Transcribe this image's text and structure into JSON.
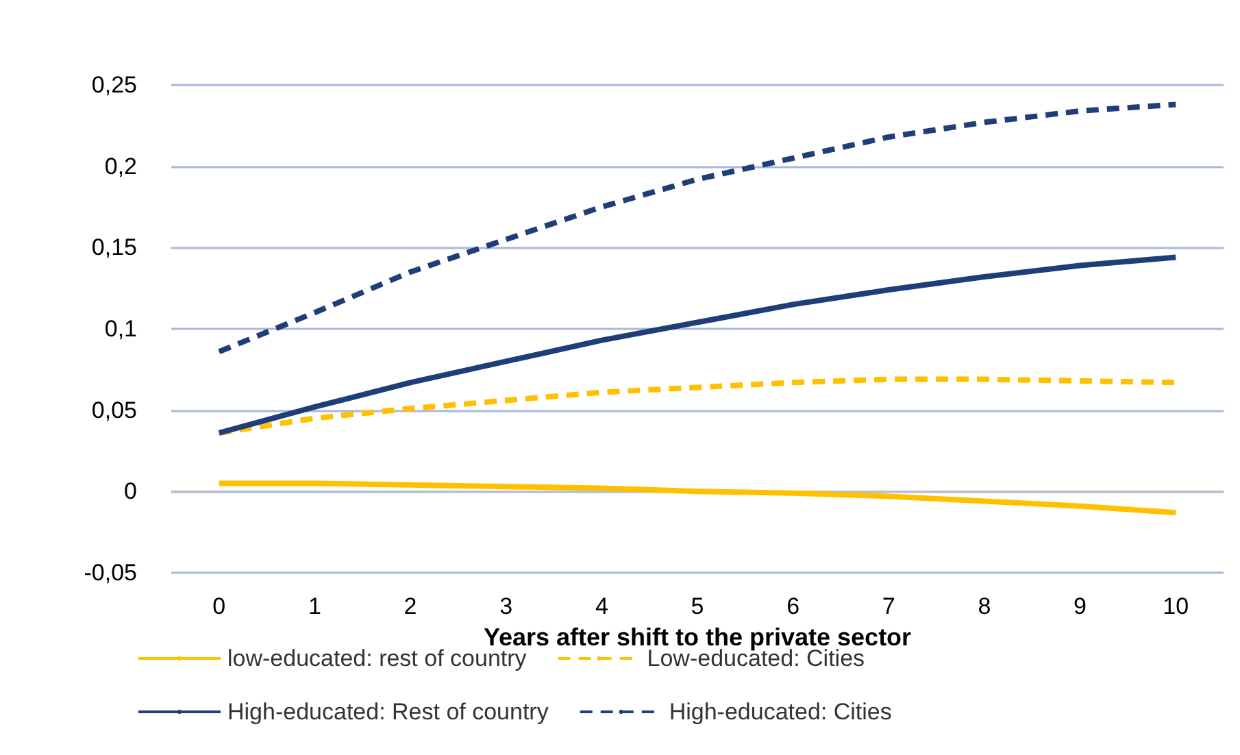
{
  "chart_data": {
    "type": "line",
    "xlabel": "Years after shift to the private sector",
    "categories": [
      "0",
      "1",
      "2",
      "3",
      "4",
      "5",
      "6",
      "7",
      "8",
      "9",
      "10"
    ],
    "series": [
      {
        "name": "low-educated: rest of country",
        "color": "#ffc000",
        "line_style": "solid",
        "values": [
          0.005,
          0.005,
          0.004,
          0.003,
          0.002,
          0,
          -0.001,
          -0.003,
          -0.006,
          -0.009,
          -0.013
        ]
      },
      {
        "name": "Low-educated: Cities",
        "color": "#ffc000",
        "line_style": "dashed",
        "values": [
          0.036,
          0.045,
          0.051,
          0.056,
          0.061,
          0.064,
          0.067,
          0.069,
          0.069,
          0.068,
          0.067
        ]
      },
      {
        "name": "High-educated: Rest of country",
        "color": "#1f3e78",
        "line_style": "solid",
        "values": [
          0.036,
          0.052,
          0.067,
          0.08,
          0.093,
          0.104,
          0.115,
          0.124,
          0.132,
          0.139,
          0.144
        ]
      },
      {
        "name": "High-educated: Cities",
        "color": "#1f3e78",
        "line_style": "dashed",
        "values": [
          0.086,
          0.11,
          0.135,
          0.155,
          0.175,
          0.192,
          0.205,
          0.218,
          0.227,
          0.234,
          0.238
        ]
      }
    ],
    "ylim": [
      -0.05,
      0.25
    ],
    "yticks": [
      {
        "value": -0.05,
        "label": "-0,05"
      },
      {
        "value": 0,
        "label": "0"
      },
      {
        "value": 0.05,
        "label": "0,05"
      },
      {
        "value": 0.1,
        "label": "0,1"
      },
      {
        "value": 0.15,
        "label": "0,15"
      },
      {
        "value": 0.2,
        "label": "0,2"
      },
      {
        "value": 0.25,
        "label": "0,25"
      }
    ],
    "grid": "y",
    "legend": "bottom",
    "marker": "none"
  }
}
